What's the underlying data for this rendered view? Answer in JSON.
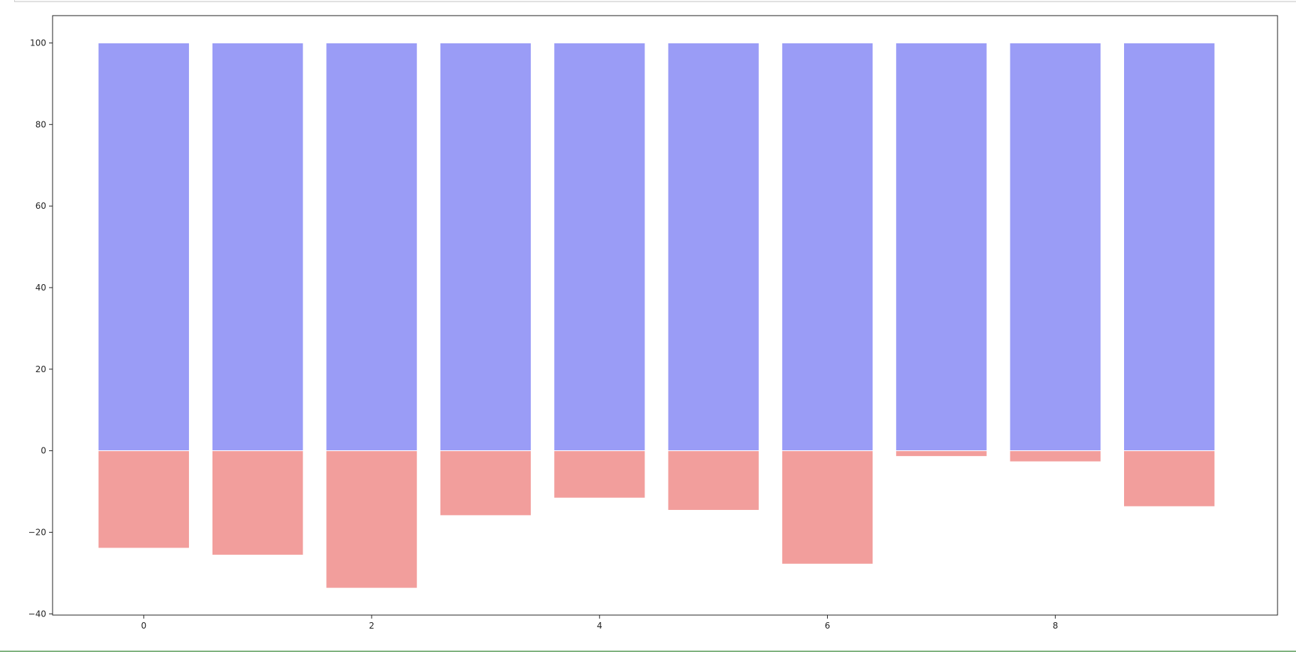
{
  "chart_data": {
    "type": "bar",
    "x": [
      0,
      1,
      2,
      3,
      4,
      5,
      6,
      7,
      8,
      9
    ],
    "series": [
      {
        "values": [
          100,
          100,
          100,
          100,
          100,
          100,
          100,
          100,
          100,
          100
        ],
        "color": "#9a9cf6"
      },
      {
        "values": [
          -23.9,
          -25.6,
          -33.7,
          -15.9,
          -11.6,
          -14.6,
          -27.8,
          -1.4,
          -2.7,
          -13.7
        ],
        "color": "#f29e9c"
      }
    ],
    "xlim": [
      -0.8,
      9.95
    ],
    "ylim": [
      -40.3,
      106.7
    ],
    "x_ticks": [
      "0",
      "2",
      "4",
      "6",
      "8"
    ],
    "y_ticks": [
      "100",
      "80",
      "60",
      "40",
      "20",
      "0",
      "−20",
      "−40"
    ],
    "title": "",
    "xlabel": "",
    "ylabel": "",
    "grid": false
  }
}
